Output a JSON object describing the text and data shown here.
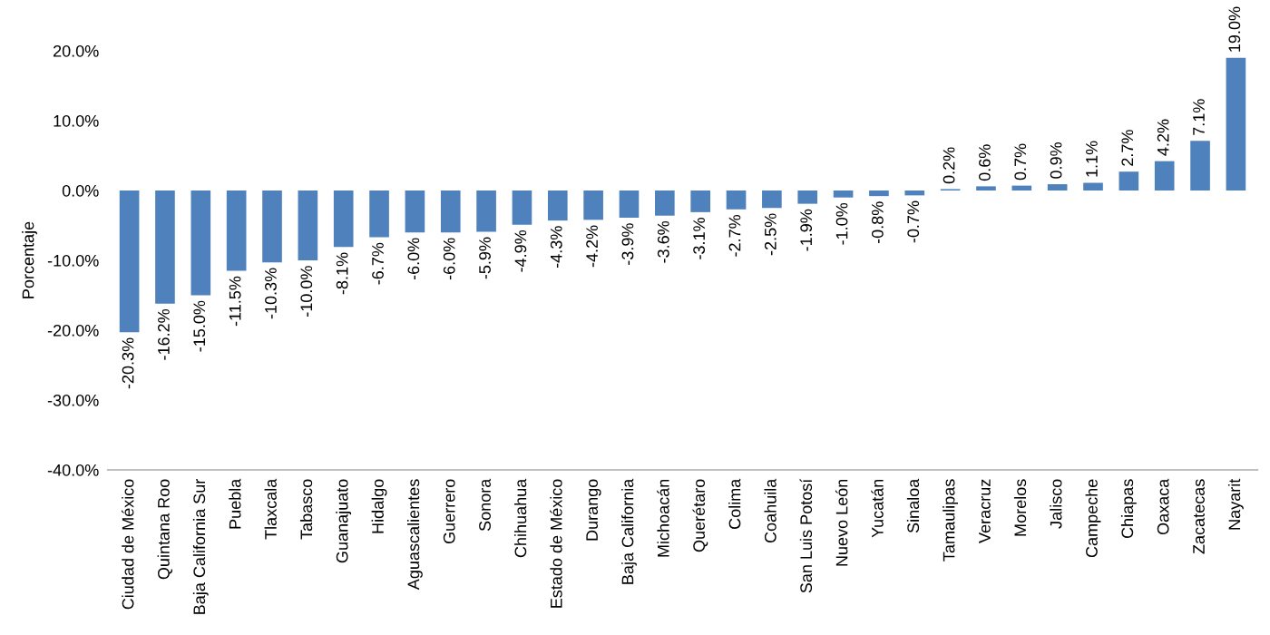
{
  "chart_data": {
    "type": "bar",
    "ylabel": "Porcentaje",
    "categories": [
      "Ciudad de México",
      "Quintana Roo",
      "Baja California Sur",
      "Puebla",
      "Tlaxcala",
      "Tabasco",
      "Guanajuato",
      "Hidalgo",
      "Aguascalientes",
      "Guerrero",
      "Sonora",
      "Chihuahua",
      "Estado de México",
      "Durango",
      "Baja California",
      "Michoacán",
      "Querétaro",
      "Colima",
      "Coahuila",
      "San Luis Potosí",
      "Nuevo León",
      "Yucatán",
      "Sinaloa",
      "Tamaulipas",
      "Veracruz",
      "Morelos",
      "Jalisco",
      "Campeche",
      "Chiapas",
      "Oaxaca",
      "Zacatecas",
      "Nayarit"
    ],
    "values": [
      -20.3,
      -16.2,
      -15.0,
      -11.5,
      -10.3,
      -10.0,
      -8.1,
      -6.7,
      -6.0,
      -6.0,
      -5.9,
      -4.9,
      -4.3,
      -4.2,
      -3.9,
      -3.6,
      -3.1,
      -2.7,
      -2.5,
      -1.9,
      -1.0,
      -0.8,
      -0.7,
      0.2,
      0.6,
      0.7,
      0.9,
      1.1,
      2.7,
      4.2,
      7.1,
      19.0
    ],
    "value_labels": [
      "-20.3%",
      "-16.2%",
      "-15.0%",
      "-11.5%",
      "-10.3%",
      "-10.0%",
      "-8.1%",
      "-6.7%",
      "-6.0%",
      "-6.0%",
      "-5.9%",
      "-4.9%",
      "-4.3%",
      "-4.2%",
      "-3.9%",
      "-3.6%",
      "-3.1%",
      "-2.7%",
      "-2.5%",
      "-1.9%",
      "-1.0%",
      "-0.8%",
      "-0.7%",
      "0.2%",
      "0.6%",
      "0.7%",
      "0.9%",
      "1.1%",
      "2.7%",
      "4.2%",
      "7.1%",
      "19.0%"
    ],
    "color": "#4f81bd",
    "ylim": [
      -40,
      20
    ],
    "yticks": [
      {
        "value": -40,
        "label": "-40.0%"
      },
      {
        "value": -30,
        "label": "-30.0%"
      },
      {
        "value": -20,
        "label": "-20.0%"
      },
      {
        "value": -10,
        "label": "-10.0%"
      },
      {
        "value": 0,
        "label": "0.0%"
      },
      {
        "value": 10,
        "label": "10.0%"
      },
      {
        "value": 20,
        "label": "20.0%"
      }
    ],
    "grid": false
  }
}
